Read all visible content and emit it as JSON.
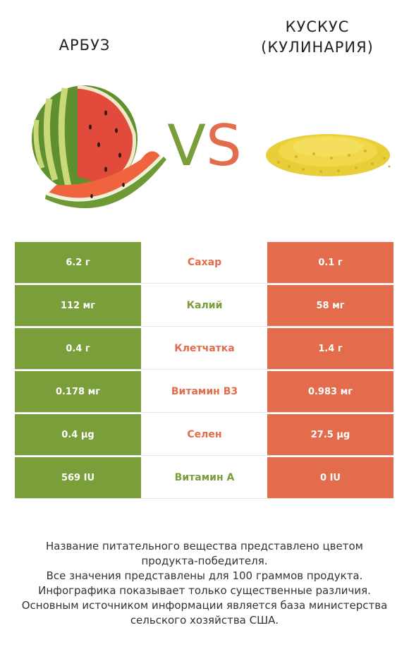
{
  "titles": {
    "left": "АРБУЗ",
    "right_line1": "КУСКУС",
    "right_line2": "(КУЛИНАРИЯ)"
  },
  "vs": {
    "v": "V",
    "s": "S"
  },
  "colors": {
    "left": "#7a9e3a",
    "right": "#e36c4c",
    "neutral_border": "#e5e5e5"
  },
  "chart_data": {
    "type": "table",
    "columns": [
      "АРБУЗ",
      "",
      "КУСКУС (КУЛИНАРИЯ)"
    ],
    "rows": [
      {
        "nutrient": "Сахар",
        "left": "6.2 г",
        "right": "0.1 г",
        "winner": "right"
      },
      {
        "nutrient": "Калий",
        "left": "112 мг",
        "right": "58 мг",
        "winner": "left"
      },
      {
        "nutrient": "Клетчатка",
        "left": "0.4 г",
        "right": "1.4 г",
        "winner": "right"
      },
      {
        "nutrient": "Витамин B3",
        "left": "0.178 мг",
        "right": "0.983 мг",
        "winner": "right"
      },
      {
        "nutrient": "Селен",
        "left": "0.4 µg",
        "right": "27.5 µg",
        "winner": "right"
      },
      {
        "nutrient": "Витамин А",
        "left": "569 IU",
        "right": "0 IU",
        "winner": "left"
      }
    ]
  },
  "footnote": [
    "Название питательного вещества представлено цветом",
    "продукта-победителя.",
    "Все значения представлены для 100 граммов продукта.",
    "Инфографика показывает только существенные различия.",
    "Основным источником информации является база министерства",
    "сельского хозяйства США."
  ]
}
